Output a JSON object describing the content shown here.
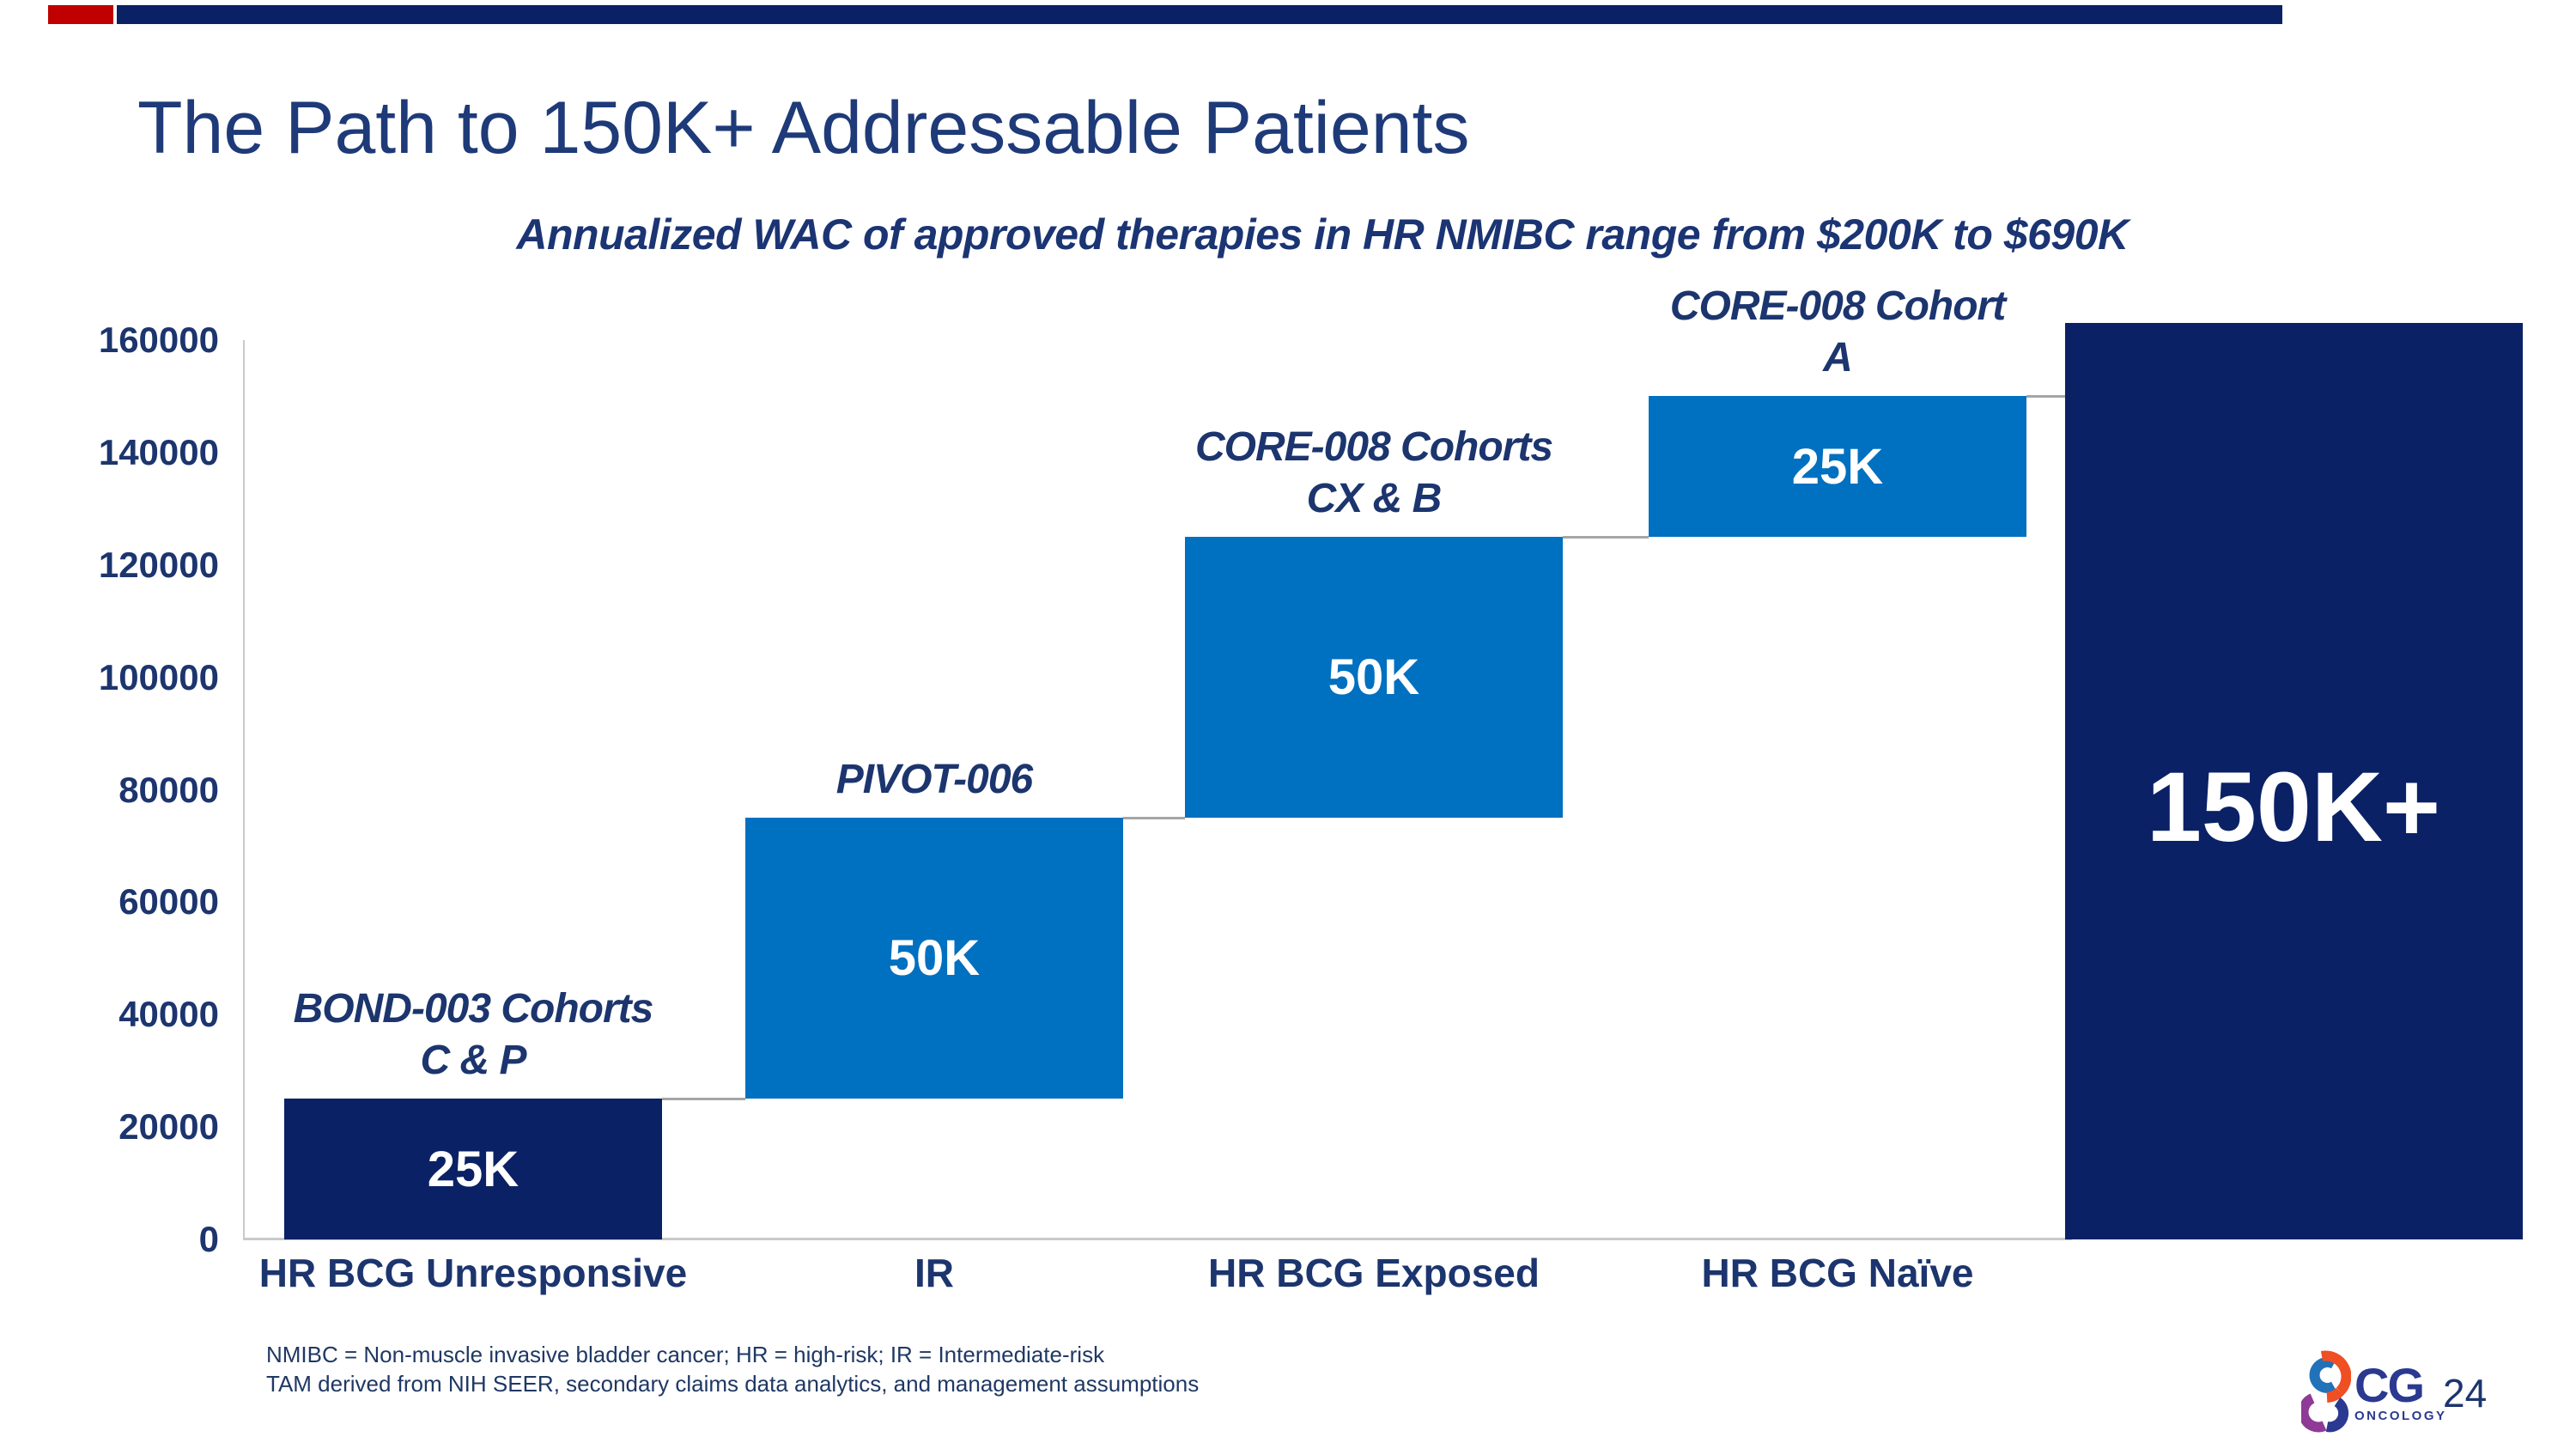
{
  "slide": {
    "title": "The Path to 150K+ Addressable Patients",
    "subtitle": "Annualized WAC of approved therapies in HR NMIBC range from $200K to $690K",
    "page_number": "24",
    "footnote_line1": "NMIBC = Non-muscle invasive bladder cancer; HR = high-risk; IR = Intermediate-risk",
    "footnote_line2": "TAM derived from NIH SEER, secondary claims data analytics, and management assumptions",
    "logo": {
      "text": "CG",
      "subtext": "ONCOLOGY"
    }
  },
  "colors": {
    "navy_bar": "#0a2166",
    "blue_bar": "#0070c0",
    "title_text": "#1e3a78",
    "chart_text": "#1c356e",
    "red_accent": "#c00000",
    "axis_gray": "#c9c9c9",
    "connector_gray": "#a6a6a6",
    "bar_label_white": "#ffffff",
    "logo_blue": "#2272b9",
    "logo_orange": "#f04e23",
    "logo_purple": "#8e3a96",
    "logo_navy": "#2b3990"
  },
  "chart_data": {
    "type": "bar",
    "subtype": "waterfall",
    "title": "The Path to 150K+ Addressable Patients",
    "subtitle": "Annualized WAC of approved therapies in HR NMIBC range from $200K to $690K",
    "xlabel": "",
    "ylabel": "",
    "ylim": [
      0,
      160000
    ],
    "grid": false,
    "legend": false,
    "y_axis_ticks": [
      "0",
      "20000",
      "40000",
      "60000",
      "80000",
      "100000",
      "120000",
      "140000",
      "160000"
    ],
    "y_tick_values": [
      0,
      20000,
      40000,
      60000,
      80000,
      100000,
      120000,
      140000,
      160000
    ],
    "categories": [
      "HR BCG Unresponsive",
      "IR",
      "HR BCG Exposed",
      "HR BCG Naïve",
      ""
    ],
    "bars": [
      {
        "category": "HR BCG Unresponsive",
        "start": 0,
        "end": 25000,
        "value_label": "25K",
        "color_role": "navy",
        "annotation_lines": [
          "BOND-003 Cohorts",
          "C & P"
        ],
        "is_total": false
      },
      {
        "category": "IR",
        "start": 25000,
        "end": 75000,
        "value_label": "50K",
        "color_role": "blue",
        "annotation_lines": [
          "PIVOT-006"
        ],
        "is_total": false
      },
      {
        "category": "HR BCG Exposed",
        "start": 75000,
        "end": 125000,
        "value_label": "50K",
        "color_role": "blue",
        "annotation_lines": [
          "CORE-008 Cohorts",
          "CX & B"
        ],
        "is_total": false
      },
      {
        "category": "HR BCG Naïve",
        "start": 125000,
        "end": 150000,
        "value_label": "25K",
        "color_role": "blue",
        "annotation_lines": [
          "CORE-008 Cohort",
          "A"
        ],
        "is_total": false
      },
      {
        "category": "",
        "start": 0,
        "end": 150000,
        "drawn_end": 163000,
        "value_label": "150K+",
        "color_role": "navy",
        "annotation_lines": [],
        "is_total": true
      }
    ]
  }
}
